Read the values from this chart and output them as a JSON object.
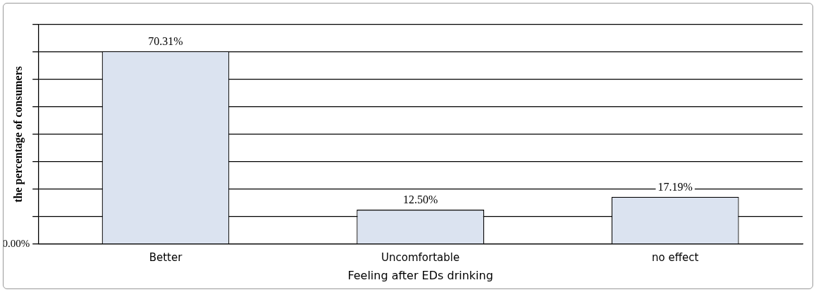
{
  "chart_data": {
    "type": "bar",
    "xlabel": "Feeling after EDs drinking",
    "ylabel": "the percentage of consumers",
    "categories": [
      "Better",
      "Uncomfortable",
      "no effect"
    ],
    "values": [
      70.31,
      12.5,
      17.19
    ],
    "value_labels": [
      "70.31%",
      "12.50%",
      "17.19%"
    ],
    "color": "#dbe3f0",
    "annotations": [
      "0.00%"
    ],
    "grid": "y",
    "legend": false
  }
}
